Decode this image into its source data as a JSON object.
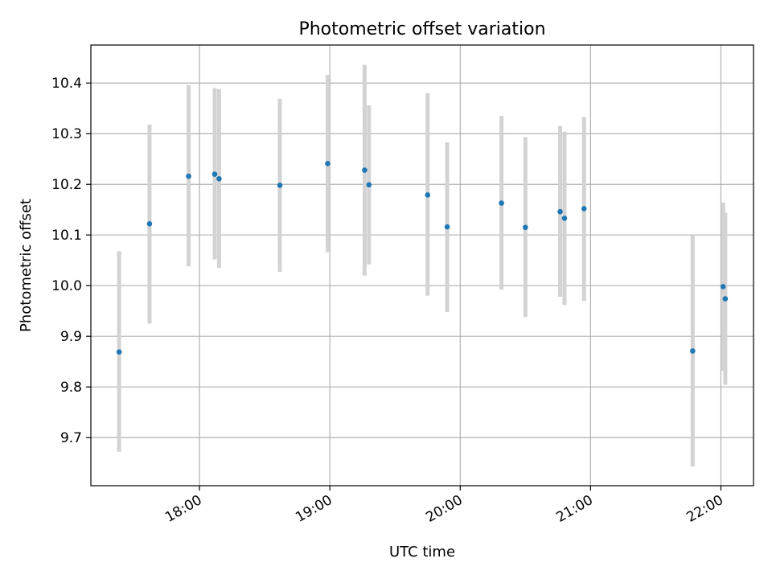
{
  "chart_data": {
    "type": "scatter",
    "title": "Photometric offset variation",
    "xlabel": "UTC time",
    "ylabel": "Photometric offset",
    "x_ticks": [
      "18:00",
      "19:00",
      "20:00",
      "21:00",
      "22:00"
    ],
    "x_tick_values": [
      "18:00",
      "19:00",
      "20:00",
      "21:00",
      "22:00"
    ],
    "y_ticks": [
      "9.7",
      "9.8",
      "9.9",
      "10.0",
      "10.1",
      "10.2",
      "10.3",
      "10.4"
    ],
    "xlim": [
      "17:10",
      "22:15"
    ],
    "ylim": [
      9.605,
      10.475
    ],
    "grid": true,
    "colors": {
      "points": "#1f77b4",
      "errorbars": "#d3d3d3",
      "grid": "#b0b0b0"
    },
    "points": [
      {
        "x": "17:23",
        "y": 9.869,
        "low": 9.672,
        "high": 10.068
      },
      {
        "x": "17:37",
        "y": 10.122,
        "low": 9.925,
        "high": 10.318
      },
      {
        "x": "17:55",
        "y": 10.216,
        "low": 10.038,
        "high": 10.396
      },
      {
        "x": "18:07",
        "y": 10.22,
        "low": 10.052,
        "high": 10.39
      },
      {
        "x": "18:09",
        "y": 10.211,
        "low": 10.035,
        "high": 10.388
      },
      {
        "x": "18:37",
        "y": 10.198,
        "low": 10.027,
        "high": 10.369
      },
      {
        "x": "18:59",
        "y": 10.241,
        "low": 10.066,
        "high": 10.416
      },
      {
        "x": "19:16",
        "y": 10.228,
        "low": 10.02,
        "high": 10.436
      },
      {
        "x": "19:18",
        "y": 10.199,
        "low": 10.042,
        "high": 10.356
      },
      {
        "x": "19:45",
        "y": 10.179,
        "low": 9.98,
        "high": 10.38
      },
      {
        "x": "19:54",
        "y": 10.116,
        "low": 9.948,
        "high": 10.283
      },
      {
        "x": "20:19",
        "y": 10.163,
        "low": 9.992,
        "high": 10.335
      },
      {
        "x": "20:30",
        "y": 10.115,
        "low": 9.938,
        "high": 10.293
      },
      {
        "x": "20:46",
        "y": 10.146,
        "low": 9.978,
        "high": 10.315
      },
      {
        "x": "20:48",
        "y": 10.133,
        "low": 9.962,
        "high": 10.304
      },
      {
        "x": "20:57",
        "y": 10.152,
        "low": 9.97,
        "high": 10.333
      },
      {
        "x": "21:47",
        "y": 9.871,
        "low": 9.643,
        "high": 10.1
      },
      {
        "x": "22:01",
        "y": 9.998,
        "low": 9.832,
        "high": 10.164
      },
      {
        "x": "22:02",
        "y": 9.974,
        "low": 9.804,
        "high": 10.144
      }
    ]
  }
}
